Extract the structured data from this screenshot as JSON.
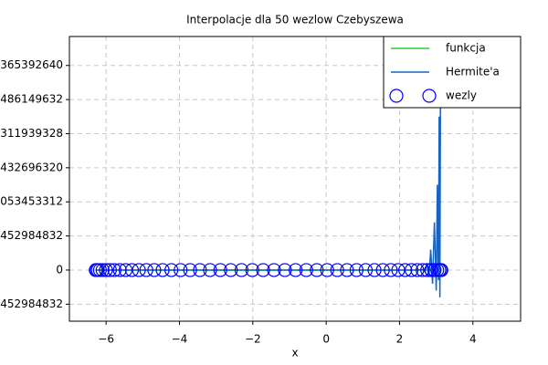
{
  "chart_data": {
    "type": "line",
    "title": "Interpolacje dla 50 wezlow Czebyszewa",
    "x_label": "x",
    "xlim": [
      -7,
      5.3
    ],
    "xticks": [
      {
        "value": -6,
        "label": "−6"
      },
      {
        "value": -4,
        "label": "−4"
      },
      {
        "value": -2,
        "label": "−2"
      },
      0,
      2,
      4
    ],
    "ylim": [
      -1500000000000,
      6850000000000
    ],
    "yticks": [
      {
        "value": -1000452984832,
        "label": "452984832"
      },
      0,
      {
        "value": 1000452984832,
        "label": "452984832"
      },
      {
        "value": 2000053453312,
        "label": "053453312"
      },
      {
        "value": 3000432696320,
        "label": "432696320"
      },
      {
        "value": 4000311939328,
        "label": "311939328"
      },
      {
        "value": 5000486149632,
        "label": "486149632"
      },
      {
        "value": 6000365392640,
        "label": "365392640"
      }
    ],
    "grid": true,
    "legend": "upper right",
    "series": [
      {
        "name": "funkcja",
        "color": "#2ecc2e",
        "style": "line",
        "x": [
          -6.28,
          -4.71,
          -3.14,
          -1.57,
          0,
          1.57,
          3.14
        ],
        "values": [
          0,
          1,
          0,
          -1,
          0,
          1,
          0
        ]
      },
      {
        "name": "Hermite'a",
        "color": "#1565c0",
        "style": "line",
        "x": [
          -6.28,
          2.5,
          2.65,
          2.7,
          2.75,
          2.8,
          2.85,
          2.9,
          2.95,
          3.0,
          3.03,
          3.06,
          3.08,
          3.1,
          3.12
        ],
        "values": [
          0,
          0,
          20000000000,
          -50000000000,
          200000000000,
          -200000000000,
          600000000000,
          -400000000000,
          1400000000000,
          -600000000000,
          2500000000000,
          -300000000000,
          4500000000000,
          -800000000000,
          6900000000000
        ]
      },
      {
        "name": "wezly",
        "color": "#0000ff",
        "style": "markers",
        "x": [
          3.139,
          3.121,
          3.084,
          3.028,
          2.955,
          2.863,
          2.754,
          2.628,
          2.485,
          2.327,
          2.153,
          1.964,
          1.761,
          1.545,
          1.317,
          1.078,
          0.828,
          0.568,
          0.3,
          0.025,
          -0.256,
          -0.543,
          -0.834,
          -1.127,
          -1.423,
          -1.719,
          -2.014,
          -2.308,
          -2.599,
          -2.886,
          -3.167,
          -3.442,
          -3.71,
          -3.969,
          -4.22,
          -4.459,
          -4.687,
          -4.903,
          -5.106,
          -5.295,
          -5.468,
          -5.627,
          -5.77,
          -5.896,
          -6.005,
          -6.096,
          -6.169,
          -6.225,
          -6.262,
          -6.281
        ],
        "values": [
          0,
          0,
          0,
          0,
          0,
          0,
          0,
          0,
          0,
          0,
          0,
          0,
          0,
          0,
          0,
          0,
          0,
          0,
          0,
          0,
          0,
          0,
          0,
          0,
          0,
          0,
          0,
          0,
          0,
          0,
          0,
          0,
          0,
          0,
          0,
          0,
          0,
          0,
          0,
          0,
          0,
          0,
          0,
          0,
          0,
          0,
          0,
          0,
          0,
          0
        ]
      }
    ]
  }
}
